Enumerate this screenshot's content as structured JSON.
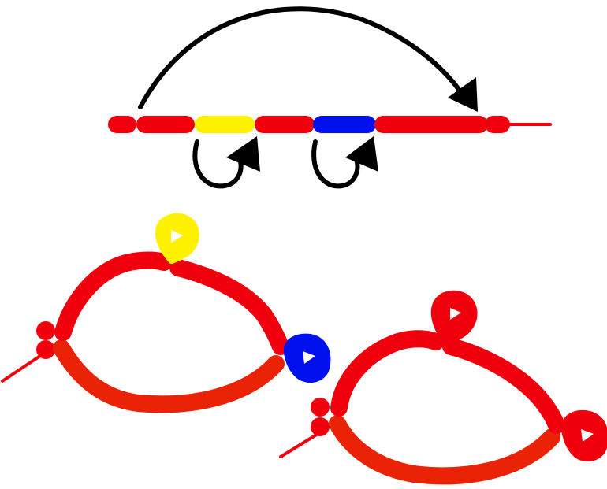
{
  "diagram": {
    "description_type": "balloon-twisting-diagram",
    "colors": {
      "red": "#f0000d",
      "orange_red": "#ea2206",
      "yellow": "#fff200",
      "blue": "#0011ee",
      "arrow": "#000000",
      "background": "#ffffff"
    },
    "straight_balloon": {
      "segments": [
        "red",
        "red",
        "yellow",
        "red",
        "blue",
        "red",
        "red"
      ],
      "has_tail": true
    },
    "arrows": [
      {
        "kind": "long-curved",
        "meaning": "fold-over"
      },
      {
        "kind": "twist-loop",
        "under": "yellow"
      },
      {
        "kind": "twist-loop",
        "under": "blue"
      }
    ],
    "results": [
      {
        "name": "colored-loops-figure",
        "loops": [
          "yellow",
          "blue"
        ]
      },
      {
        "name": "all-red-figure",
        "loops": [
          "red",
          "red"
        ]
      }
    ]
  }
}
